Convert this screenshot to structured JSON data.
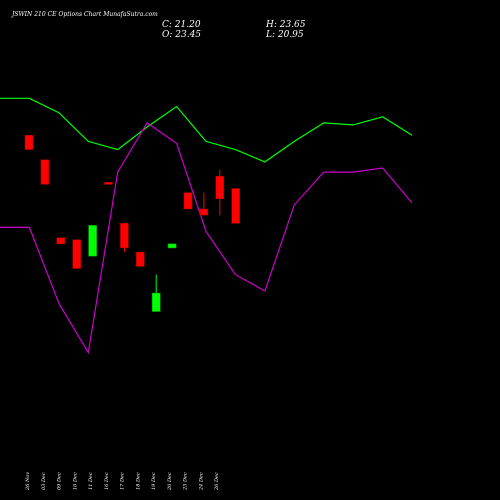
{
  "chart_data": {
    "type": "candlestick",
    "title": "JSWIN 210 CE Options Chart Munafa",
    "title_suffix": "Sutra.com",
    "ohlc": {
      "close_label": "C: 21.20",
      "high_label": "H: 23.65",
      "open_label": "O: 23.45",
      "low_label": "L: 20.95"
    },
    "categories": [
      "26 Nov",
      "03 Dec",
      "09 Dec",
      "10 Dec",
      "11 Dec",
      "16 Dec",
      "17 Dec",
      "18 Dec",
      "19 Dec",
      "20 Dec",
      "23 Dec",
      "24 Dec",
      "26 Dec"
    ],
    "candles": [
      {
        "o": 0.78,
        "c": 0.745,
        "h": 0.78,
        "l": 0.745
      },
      {
        "o": 0.72,
        "c": 0.66,
        "h": 0.72,
        "l": 0.66
      },
      {
        "o": 0.53,
        "c": 0.515,
        "h": 0.53,
        "l": 0.515
      },
      {
        "o": 0.525,
        "c": 0.455,
        "h": 0.525,
        "l": 0.455
      },
      {
        "o": 0.485,
        "c": 0.56,
        "h": 0.56,
        "l": 0.485
      },
      {
        "o": 0.665,
        "c": 0.66,
        "h": 0.665,
        "l": 0.66
      },
      {
        "o": 0.565,
        "c": 0.505,
        "h": 0.565,
        "l": 0.495
      },
      {
        "o": 0.495,
        "c": 0.46,
        "h": 0.495,
        "l": 0.46
      },
      {
        "o": 0.35,
        "c": 0.395,
        "h": 0.44,
        "l": 0.35
      },
      {
        "o": 0.505,
        "c": 0.515,
        "h": 0.515,
        "l": 0.505
      },
      {
        "o": 0.64,
        "c": 0.6,
        "h": 0.64,
        "l": 0.6
      },
      {
        "o": 0.6,
        "c": 0.585,
        "h": 0.64,
        "l": 0.585
      },
      {
        "o": 0.68,
        "c": 0.625,
        "h": 0.695,
        "l": 0.585
      },
      {
        "o": 0.65,
        "c": 0.565,
        "h": 0.65,
        "l": 0.565
      }
    ],
    "green_line": [
      0.87,
      0.87,
      0.835,
      0.765,
      0.745,
      0.8,
      0.85,
      0.765,
      0.745,
      0.715,
      0.765,
      0.81,
      0.805,
      0.825,
      0.78
    ],
    "magenta_line": [
      0.555,
      0.555,
      0.37,
      0.25,
      0.69,
      0.81,
      0.76,
      0.545,
      0.44,
      0.4,
      0.61,
      0.69,
      0.69,
      0.7,
      0.615
    ],
    "colors": {
      "background": "#000000",
      "green_line": "#00ff00",
      "magenta_line": "#cc00cc",
      "bull": "#00ff00",
      "bear": "#ff0000",
      "text": "#ffffff"
    },
    "grid": false,
    "legend": "none"
  }
}
